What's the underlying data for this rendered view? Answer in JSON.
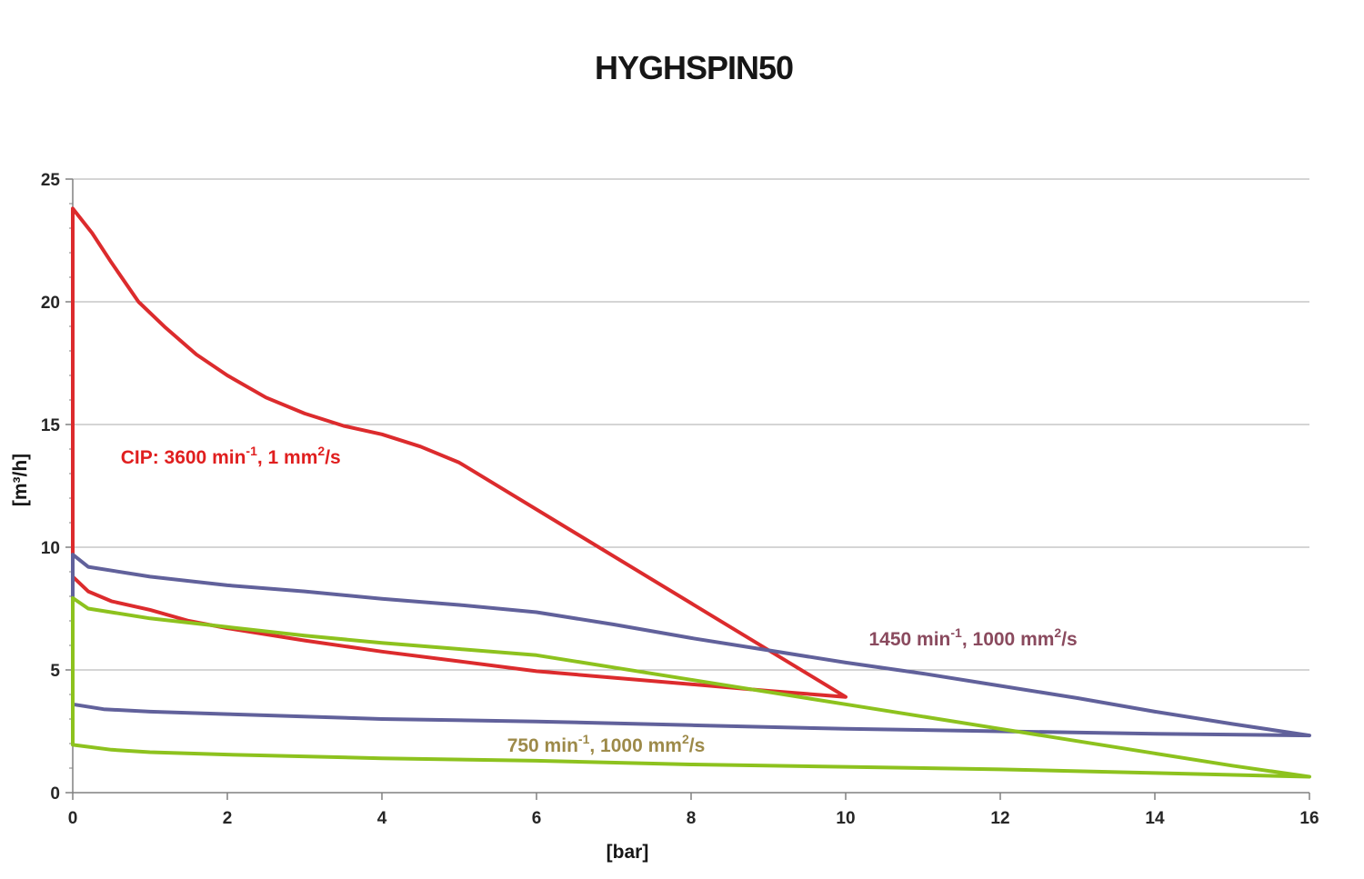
{
  "page": {
    "background": "#ffffff"
  },
  "chart_data": {
    "type": "line",
    "title": "HYGHSPIN50",
    "xlabel": "[bar]",
    "ylabel": "[m³/h]",
    "xlim": [
      0,
      16
    ],
    "ylim": [
      0,
      25
    ],
    "xticks": [
      0,
      2,
      4,
      6,
      8,
      10,
      12,
      14,
      16
    ],
    "yticks": [
      0,
      5,
      10,
      15,
      20,
      25
    ],
    "y_minor_step": 1,
    "grid": "horizontal-major",
    "legend_position": "none-inline-annotations",
    "axis_color": "#808080",
    "grid_color": "#ababab",
    "tick_label_color": "#262626",
    "series": [
      {
        "name": "CIP: 3600 min-1, 1 mm2/s",
        "color": "#dc2b2d",
        "closed_loop": true,
        "points": [
          [
            0,
            23.8
          ],
          [
            0.25,
            22.8
          ],
          [
            0.5,
            21.6
          ],
          [
            0.85,
            20.0
          ],
          [
            1.2,
            18.95
          ],
          [
            1.6,
            17.85
          ],
          [
            2,
            17.0
          ],
          [
            2.5,
            16.1
          ],
          [
            3,
            15.45
          ],
          [
            3.5,
            14.95
          ],
          [
            4,
            14.6
          ],
          [
            4.5,
            14.1
          ],
          [
            5,
            13.45
          ],
          [
            10,
            3.9
          ],
          [
            9,
            4.15
          ],
          [
            8,
            4.42
          ],
          [
            7,
            4.68
          ],
          [
            6,
            4.95
          ],
          [
            5,
            5.35
          ],
          [
            4,
            5.75
          ],
          [
            3,
            6.2
          ],
          [
            2,
            6.7
          ],
          [
            1.5,
            7.0
          ],
          [
            1,
            7.45
          ],
          [
            0.5,
            7.8
          ],
          [
            0.2,
            8.2
          ],
          [
            0,
            8.8
          ]
        ]
      },
      {
        "name": "1450 min-1, 1000 mm2/s",
        "color": "#61619b",
        "closed_loop": true,
        "points": [
          [
            0,
            9.7
          ],
          [
            0.2,
            9.2
          ],
          [
            1,
            8.8
          ],
          [
            2,
            8.45
          ],
          [
            3,
            8.2
          ],
          [
            4,
            7.9
          ],
          [
            5,
            7.65
          ],
          [
            6,
            7.35
          ],
          [
            7,
            6.85
          ],
          [
            8,
            6.3
          ],
          [
            9,
            5.8
          ],
          [
            10,
            5.3
          ],
          [
            11,
            4.85
          ],
          [
            12,
            4.35
          ],
          [
            13,
            3.85
          ],
          [
            14,
            3.3
          ],
          [
            15,
            2.8
          ],
          [
            16,
            2.33
          ],
          [
            14,
            2.4
          ],
          [
            12,
            2.5
          ],
          [
            10,
            2.6
          ],
          [
            8,
            2.75
          ],
          [
            6,
            2.9
          ],
          [
            4,
            3.0
          ],
          [
            2,
            3.2
          ],
          [
            1,
            3.3
          ],
          [
            0.4,
            3.4
          ],
          [
            0,
            3.6
          ]
        ]
      },
      {
        "name": "750 min-1, 1000 mm2/s",
        "color": "#8dc21e",
        "closed_loop": true,
        "points": [
          [
            0,
            7.93
          ],
          [
            0.2,
            7.5
          ],
          [
            1,
            7.1
          ],
          [
            2,
            6.75
          ],
          [
            3,
            6.4
          ],
          [
            4,
            6.1
          ],
          [
            5,
            5.85
          ],
          [
            6,
            5.6
          ],
          [
            7,
            5.1
          ],
          [
            8,
            4.6
          ],
          [
            9,
            4.1
          ],
          [
            10,
            3.6
          ],
          [
            11,
            3.1
          ],
          [
            12,
            2.6
          ],
          [
            13,
            2.1
          ],
          [
            14,
            1.6
          ],
          [
            15,
            1.1
          ],
          [
            16,
            0.65
          ],
          [
            14,
            0.8
          ],
          [
            12,
            0.95
          ],
          [
            10,
            1.05
          ],
          [
            8,
            1.15
          ],
          [
            6,
            1.3
          ],
          [
            4,
            1.4
          ],
          [
            2,
            1.55
          ],
          [
            1,
            1.65
          ],
          [
            0.5,
            1.75
          ],
          [
            0,
            1.95
          ]
        ]
      }
    ],
    "annotations": [
      {
        "name": "cip-3600-label",
        "color": "#e01f1f",
        "x": 0.62,
        "y": 13.67,
        "segments": [
          {
            "t": "CIP: 3600 min"
          },
          {
            "t": "-1",
            "sup": true
          },
          {
            "t": ", 1 mm"
          },
          {
            "t": "2",
            "sup": true
          },
          {
            "t": "/s"
          }
        ]
      },
      {
        "name": "1450-label",
        "color": "#8a4a5e",
        "x": 10.3,
        "y": 6.26,
        "segments": [
          {
            "t": "1450 min"
          },
          {
            "t": "-1",
            "sup": true
          },
          {
            "t": ", 1000 mm"
          },
          {
            "t": "2",
            "sup": true
          },
          {
            "t": "/s"
          }
        ]
      },
      {
        "name": "750-label",
        "color": "#9d8a49",
        "x": 5.62,
        "y": 1.93,
        "segments": [
          {
            "t": "750 min"
          },
          {
            "t": "-1",
            "sup": true
          },
          {
            "t": ", 1000 mm"
          },
          {
            "t": "2",
            "sup": true
          },
          {
            "t": "/s"
          }
        ]
      }
    ]
  }
}
